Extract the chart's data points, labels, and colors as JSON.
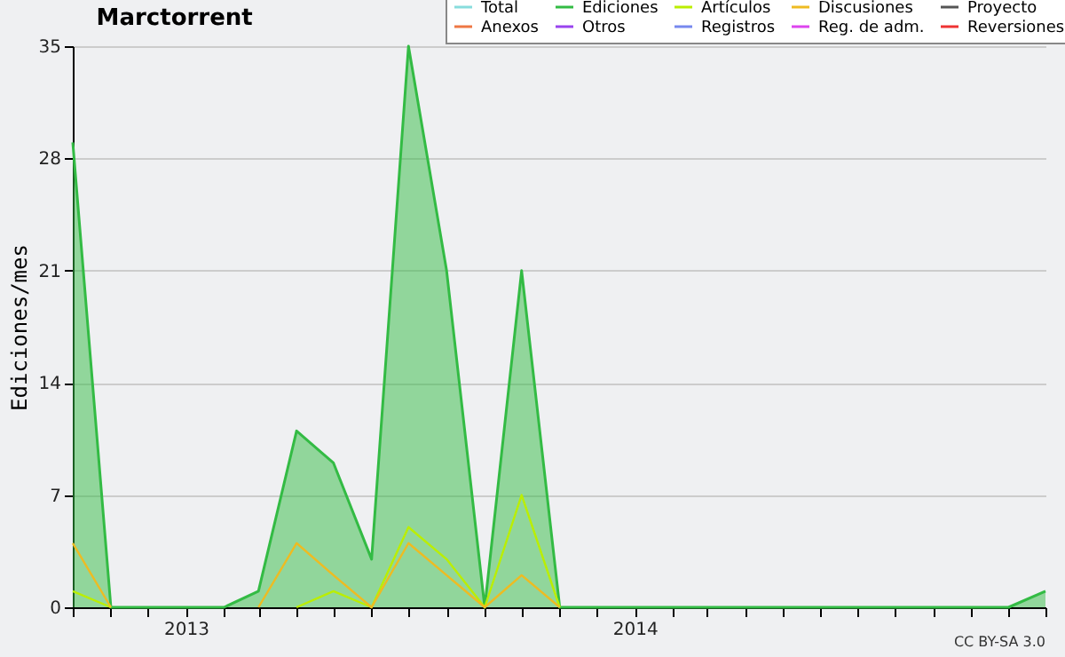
{
  "chart_data": {
    "type": "line",
    "title": "Marctorrent",
    "ylabel": "Ediciones/mes",
    "x": [
      "2012-10",
      "2012-11",
      "2012-12",
      "2013-01",
      "2013-02",
      "2013-03",
      "2013-04",
      "2013-05",
      "2013-06",
      "2013-07",
      "2013-08",
      "2013-09",
      "2013-10",
      "2013-11",
      "2013-12",
      "2014-01",
      "2014-02",
      "2014-03",
      "2014-04",
      "2014-05",
      "2014-06",
      "2014-07",
      "2014-08",
      "2014-09",
      "2014-10",
      "2014-11",
      "2014-12"
    ],
    "series": [
      {
        "name": "Total",
        "color": "#88dddd",
        "values": [
          null,
          null,
          null,
          null,
          null,
          null,
          null,
          null,
          null,
          null,
          null,
          null,
          null,
          null,
          null,
          null,
          null,
          null,
          null,
          null,
          null,
          null,
          null,
          null,
          null,
          null,
          null
        ]
      },
      {
        "name": "Ediciones",
        "type": "area",
        "color": "#33bb44",
        "values": [
          29,
          0,
          0,
          0,
          0,
          1,
          11,
          9,
          3,
          35,
          21,
          0,
          21,
          0,
          0,
          0,
          0,
          0,
          0,
          0,
          0,
          0,
          0,
          0,
          0,
          0,
          1
        ]
      },
      {
        "name": "Artículos",
        "color": "#bbee00",
        "values": [
          1,
          0,
          null,
          null,
          null,
          null,
          0,
          1,
          0,
          5,
          3,
          0,
          7,
          0,
          null,
          null,
          null,
          null,
          null,
          null,
          null,
          null,
          null,
          null,
          null,
          null,
          null
        ]
      },
      {
        "name": "Discusiones",
        "color": "#eebb22",
        "values": [
          4,
          0,
          null,
          null,
          null,
          0,
          4,
          2,
          0,
          4,
          2,
          0,
          2,
          0,
          null,
          null,
          null,
          null,
          null,
          null,
          null,
          null,
          null,
          null,
          null,
          null,
          null
        ]
      },
      {
        "name": "Proyecto",
        "color": "#555555",
        "values": [
          null,
          null,
          null,
          null,
          null,
          null,
          null,
          null,
          null,
          null,
          null,
          null,
          null,
          null,
          null,
          null,
          null,
          null,
          null,
          null,
          null,
          null,
          null,
          null,
          null,
          null,
          null
        ]
      },
      {
        "name": "Anexos",
        "color": "#ee7744",
        "values": [
          null,
          null,
          null,
          null,
          null,
          null,
          null,
          null,
          null,
          null,
          null,
          null,
          null,
          null,
          null,
          null,
          null,
          null,
          null,
          null,
          null,
          null,
          null,
          null,
          null,
          null,
          null
        ]
      },
      {
        "name": "Otros",
        "color": "#9944ee",
        "values": [
          null,
          null,
          null,
          null,
          null,
          null,
          null,
          null,
          null,
          null,
          null,
          null,
          null,
          null,
          null,
          null,
          null,
          null,
          null,
          null,
          null,
          null,
          null,
          null,
          null,
          null,
          null
        ]
      },
      {
        "name": "Registros",
        "color": "#7788ee",
        "values": [
          null,
          null,
          null,
          null,
          null,
          null,
          null,
          null,
          null,
          null,
          null,
          null,
          null,
          null,
          null,
          null,
          null,
          null,
          null,
          null,
          null,
          null,
          null,
          null,
          null,
          null,
          null
        ]
      },
      {
        "name": "Reg. de adm.",
        "color": "#dd44ee",
        "values": [
          null,
          null,
          null,
          null,
          null,
          null,
          null,
          null,
          null,
          null,
          null,
          null,
          null,
          null,
          null,
          null,
          null,
          null,
          null,
          null,
          null,
          null,
          null,
          null,
          null,
          null,
          null
        ]
      },
      {
        "name": "Reversiones",
        "color": "#ee3333",
        "values": [
          null,
          null,
          null,
          null,
          null,
          null,
          null,
          null,
          null,
          null,
          null,
          null,
          null,
          null,
          null,
          null,
          null,
          null,
          null,
          null,
          null,
          null,
          null,
          null,
          null,
          null,
          null
        ]
      }
    ],
    "xlim": [
      "2012-10",
      "2014-12"
    ],
    "xticks": [
      {
        "value": "2012-10",
        "label": null
      },
      {
        "value": "2012-11",
        "label": null
      },
      {
        "value": "2012-12",
        "label": null
      },
      {
        "value": "2013-01",
        "label": "2013"
      },
      {
        "value": "2013-02",
        "label": null
      },
      {
        "value": "2013-03",
        "label": null
      },
      {
        "value": "2013-04",
        "label": null
      },
      {
        "value": "2013-05",
        "label": null
      },
      {
        "value": "2013-06",
        "label": null
      },
      {
        "value": "2013-07",
        "label": null
      },
      {
        "value": "2013-08",
        "label": null
      },
      {
        "value": "2013-09",
        "label": null
      },
      {
        "value": "2013-10",
        "label": null
      },
      {
        "value": "2013-11",
        "label": null
      },
      {
        "value": "2013-12",
        "label": null
      },
      {
        "value": "2014-01",
        "label": "2014"
      },
      {
        "value": "2014-02",
        "label": null
      },
      {
        "value": "2014-03",
        "label": null
      },
      {
        "value": "2014-04",
        "label": null
      },
      {
        "value": "2014-05",
        "label": null
      },
      {
        "value": "2014-06",
        "label": null
      },
      {
        "value": "2014-07",
        "label": null
      },
      {
        "value": "2014-08",
        "label": null
      },
      {
        "value": "2014-09",
        "label": null
      },
      {
        "value": "2014-10",
        "label": null
      },
      {
        "value": "2014-11",
        "label": null
      },
      {
        "value": "2014-12",
        "label": null
      }
    ],
    "ylim": [
      0,
      35
    ],
    "yticks": [
      0,
      7,
      14,
      21,
      28,
      35
    ],
    "grid": "y",
    "legend": "top right",
    "marker": "none",
    "line_style": "solid",
    "annotations": [
      "CC BY-SA 3.0"
    ]
  }
}
